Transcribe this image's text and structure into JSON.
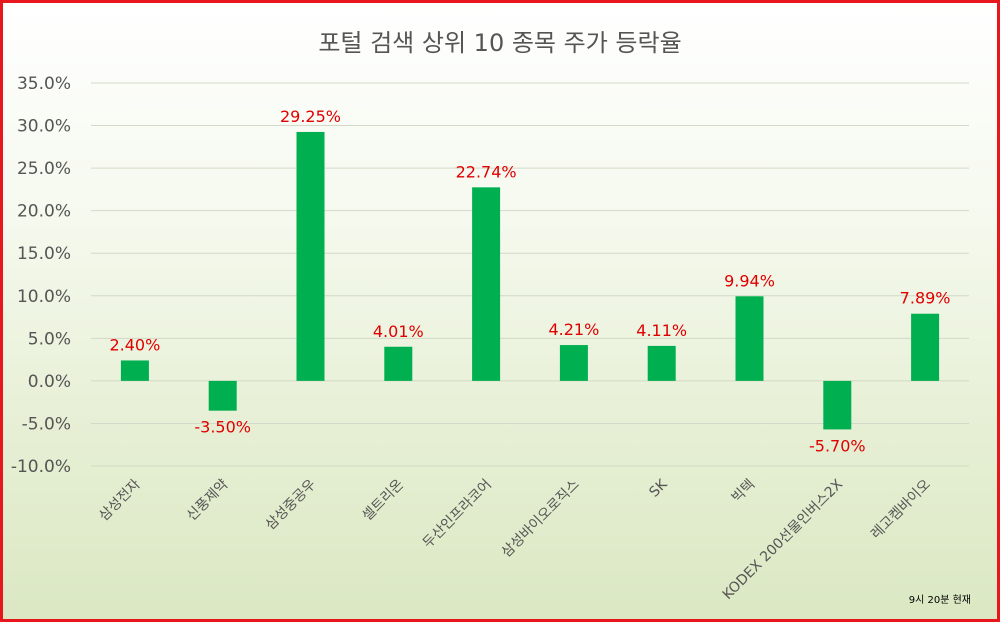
{
  "chart_data": {
    "type": "bar",
    "title": "포털 검색 상위 10 종목 주가 등락율",
    "categories": [
      "삼성전자",
      "신풍제약",
      "삼성중공우",
      "셀트리온",
      "두산인프라코어",
      "삼성바이오로직스",
      "SK",
      "빅텍",
      "KODEX 200선물인버스2X",
      "레고켐바이오"
    ],
    "values": [
      2.4,
      -3.5,
      29.25,
      4.01,
      22.74,
      4.21,
      4.11,
      9.94,
      -5.7,
      7.89
    ],
    "data_labels": [
      "2.40%",
      "-3.50%",
      "29.25%",
      "4.01%",
      "22.74%",
      "4.21%",
      "4.11%",
      "9.94%",
      "-5.70%",
      "7.89%"
    ],
    "yticks": [
      35,
      30,
      25,
      20,
      15,
      10,
      5,
      0,
      -5,
      -10
    ],
    "ytick_labels": [
      "35.0%",
      "30.0%",
      "25.0%",
      "20.0%",
      "15.0%",
      "10.0%",
      "5.0%",
      "0.0%",
      "-5.0%",
      "-10.0%"
    ],
    "ylim": [
      -10,
      35
    ],
    "grid": true,
    "legend": "none",
    "note": "9시 20분 현재",
    "colors": {
      "bar": "#00b050",
      "label": "#e00000",
      "border": "#e8161d",
      "axis_text": "#555555"
    }
  }
}
